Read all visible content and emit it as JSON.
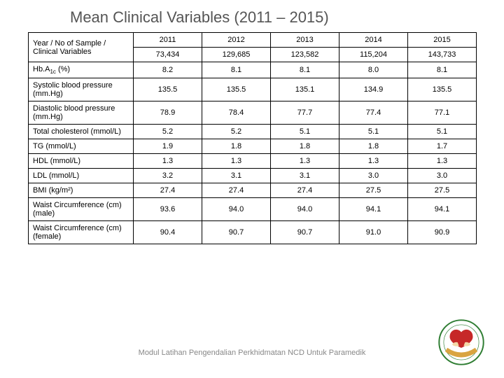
{
  "title": "Mean Clinical Variables (2011 – 2015)",
  "table": {
    "header_label": "Year / No of Sample / Clinical Variables",
    "years": [
      "2011",
      "2012",
      "2013",
      "2014",
      "2015"
    ],
    "samples": [
      "73,434",
      "129,685",
      "123,582",
      "115,204",
      "143,733"
    ],
    "rows": [
      {
        "label": "Hb.A",
        "sub": "1c",
        "suffix": " (%)",
        "vals": [
          "8.2",
          "8.1",
          "8.1",
          "8.0",
          "8.1"
        ]
      },
      {
        "label": "Systolic blood pressure (mm.Hg)",
        "vals": [
          "135.5",
          "135.5",
          "135.1",
          "134.9",
          "135.5"
        ]
      },
      {
        "label": "Diastolic blood pressure (mm.Hg)",
        "vals": [
          "78.9",
          "78.4",
          "77.7",
          "77.4",
          "77.1"
        ]
      },
      {
        "label": "Total cholesterol (mmol/L)",
        "vals": [
          "5.2",
          "5.2",
          "5.1",
          "5.1",
          "5.1"
        ]
      },
      {
        "label": "TG (mmol/L)",
        "vals": [
          "1.9",
          "1.8",
          "1.8",
          "1.8",
          "1.7"
        ]
      },
      {
        "label": "HDL (mmol/L)",
        "vals": [
          "1.3",
          "1.3",
          "1.3",
          "1.3",
          "1.3"
        ]
      },
      {
        "label": "LDL (mmol/L)",
        "vals": [
          "3.2",
          "3.1",
          "3.1",
          "3.0",
          "3.0"
        ]
      },
      {
        "label": "BMI (kg/m²)",
        "vals": [
          "27.4",
          "27.4",
          "27.4",
          "27.5",
          "27.5"
        ]
      },
      {
        "label": "Waist Circumference (cm) (male)",
        "vals": [
          "93.6",
          "94.0",
          "94.0",
          "94.1",
          "94.1"
        ]
      },
      {
        "label": "Waist Circumference (cm) (female)",
        "vals": [
          "90.4",
          "90.7",
          "90.7",
          "91.0",
          "90.9"
        ]
      }
    ],
    "colors": {
      "border": "#000000",
      "text": "#000000",
      "bg": "#ffffff"
    }
  },
  "footer": "Modul Latihan Pengendalian Perkhidmatan NCD Untuk Paramedik",
  "logo": {
    "outer_ring": "#2e7d32",
    "ribbon": "#d9a440",
    "heart": "#c62828",
    "hands": "#f3d9a8",
    "text_color": "#2e7d32"
  }
}
